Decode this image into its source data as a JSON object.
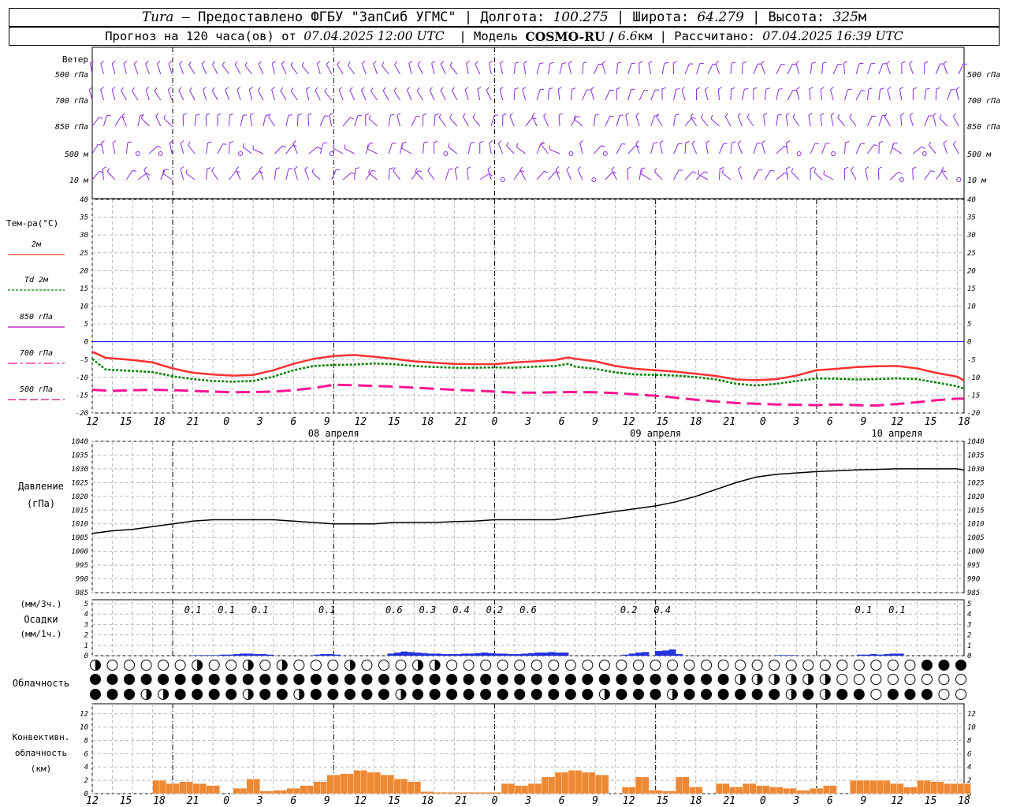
{
  "header": {
    "station": "Tura",
    "provider": " – Предоставлено ФГБУ \"ЗапСиб УГМС\" | Долгота: ",
    "lon": "100.275",
    "lat_label": " | Широта: ",
    "lat": "64.279",
    "alt_label": " | Высота: ",
    "alt": "325",
    "alt_unit": "м",
    "forecast_label": "Прогноз на 120 часа(ов) от ",
    "forecast_date": "07.04.2025 12:00 UTC",
    "model_label": "  | Модель ",
    "model": "COSMO-RU / ",
    "resolution": "6.6",
    "res_unit": "км",
    "calc_label": " | Рассчитано: ",
    "calc_date": "07.04.2025 16:39 UTC"
  },
  "wind": {
    "label": "Ветер",
    "levels": [
      "500 гПа",
      "700 гПа",
      "850 гПа",
      "500 м",
      "10 м"
    ],
    "barb_color": "#8a2be2"
  },
  "time_axis": {
    "hours": [
      "12",
      "15",
      "18",
      "21",
      "0",
      "3",
      "6",
      "9",
      "12",
      "15",
      "18",
      "21",
      "0",
      "3",
      "6",
      "9",
      "12",
      "15",
      "18",
      "21",
      "0",
      "3",
      "6",
      "9",
      "12",
      "15",
      "18"
    ],
    "dates": [
      "08 апреля",
      "09 апреля",
      "10 апреля"
    ]
  },
  "temperature": {
    "title": "Тем-ра(°C)",
    "legend": [
      {
        "label": "2м",
        "color": "#ff3030"
      },
      {
        "label": "Td  2м",
        "color": "#008000"
      },
      {
        "label": "850 гПа",
        "color": "#c000c0"
      },
      {
        "label": "700 гПа",
        "color": "#ff1493"
      },
      {
        "label": "500 гПа",
        "color": "#d01070"
      }
    ],
    "y_ticks": [
      "40",
      "35",
      "30",
      "25",
      "20",
      "15",
      "10",
      "5",
      "0",
      "-5",
      "-10",
      "-15",
      "-20"
    ]
  },
  "pressure": {
    "title": "Давление",
    "unit": "(гПа)",
    "y_ticks": [
      "1040",
      "1035",
      "1030",
      "1025",
      "1020",
      "1015",
      "1010",
      "1005",
      "1000",
      "995",
      "990",
      "985"
    ]
  },
  "precip": {
    "unit_top": "(мм/3ч.)",
    "title": "Осадки",
    "unit_bottom": "(мм/1ч.)",
    "y_ticks": [
      "5",
      "4",
      "3",
      "2",
      "1",
      "0"
    ],
    "labels": [
      {
        "h": 15,
        "v": "0.1"
      },
      {
        "h": 20,
        "v": "0.1"
      },
      {
        "h": 25,
        "v": "0.1"
      },
      {
        "h": 35,
        "v": "0.1"
      },
      {
        "h": 45,
        "v": "0.6"
      },
      {
        "h": 50,
        "v": "0.3"
      },
      {
        "h": 55,
        "v": "0.4"
      },
      {
        "h": 60,
        "v": "0.2"
      },
      {
        "h": 65,
        "v": "0.6"
      },
      {
        "h": 80,
        "v": "0.2"
      },
      {
        "h": 85,
        "v": "0.4"
      },
      {
        "h": 115,
        "v": "0.1"
      },
      {
        "h": 120,
        "v": "0.1"
      }
    ]
  },
  "cloud": {
    "title": "Облачность"
  },
  "convective": {
    "title1": "Конвективн.",
    "title2": "облачность",
    "unit": "(км)",
    "y_ticks": [
      "12",
      "10",
      "8",
      "6",
      "4",
      "2",
      "0"
    ]
  },
  "chart_data": [
    {
      "type": "line",
      "title": "Тем-ра(°C)",
      "x_unit": "hours since 07.04.2025 12:00 UTC",
      "ylim": [
        -20,
        40
      ],
      "series": [
        {
          "name": "2м",
          "x": [
            0,
            2,
            6,
            9,
            12,
            15,
            18,
            21,
            24,
            27,
            30,
            33,
            36,
            39,
            42,
            45,
            48,
            51,
            54,
            57,
            60,
            63,
            66,
            69,
            71,
            72,
            75,
            78,
            81,
            84,
            87,
            90,
            93,
            96,
            99,
            102,
            105,
            108,
            111,
            114,
            117,
            120,
            123,
            126,
            129,
            130
          ],
          "values": [
            -2.8,
            -4.5,
            -5.1,
            -5.8,
            -7.5,
            -8.7,
            -9.2,
            -9.5,
            -9.3,
            -8.0,
            -6.2,
            -4.8,
            -4.0,
            -3.7,
            -4.2,
            -4.8,
            -5.5,
            -5.9,
            -6.2,
            -6.3,
            -6.3,
            -5.8,
            -5.5,
            -5.1,
            -4.4,
            -4.8,
            -5.5,
            -6.8,
            -7.6,
            -8.0,
            -8.4,
            -9.0,
            -9.6,
            -10.6,
            -10.8,
            -10.5,
            -9.5,
            -8.0,
            -7.6,
            -7.1,
            -6.9,
            -6.8,
            -7.5,
            -8.8,
            -9.8,
            -10.9
          ]
        },
        {
          "name": "Td  2м",
          "x": [
            0,
            2,
            6,
            9,
            12,
            15,
            18,
            21,
            24,
            27,
            30,
            33,
            36,
            39,
            42,
            45,
            48,
            51,
            54,
            57,
            60,
            63,
            66,
            69,
            71,
            72,
            75,
            78,
            81,
            84,
            87,
            90,
            93,
            96,
            99,
            102,
            105,
            108,
            111,
            114,
            117,
            120,
            123,
            126,
            129,
            130
          ],
          "values": [
            -4.8,
            -7.8,
            -8.2,
            -8.5,
            -9.7,
            -10.5,
            -11.0,
            -11.2,
            -11.0,
            -9.8,
            -8.0,
            -6.8,
            -6.5,
            -6.4,
            -6.1,
            -6.3,
            -6.8,
            -7.1,
            -7.3,
            -7.3,
            -7.2,
            -7.3,
            -7.0,
            -6.8,
            -6.2,
            -7.0,
            -7.6,
            -8.6,
            -9.2,
            -9.3,
            -9.5,
            -9.9,
            -10.6,
            -11.8,
            -12.3,
            -11.8,
            -11.0,
            -10.3,
            -10.4,
            -10.6,
            -10.5,
            -10.3,
            -10.5,
            -11.5,
            -12.5,
            -13.2
          ]
        },
        {
          "name": "500 гПа",
          "x": [
            0,
            3,
            6,
            9,
            12,
            15,
            18,
            21,
            24,
            27,
            30,
            33,
            36,
            39,
            42,
            45,
            48,
            51,
            54,
            57,
            60,
            63,
            66,
            69,
            72,
            75,
            78,
            81,
            84,
            87,
            90,
            93,
            96,
            99,
            102,
            105,
            108,
            111,
            114,
            117,
            120,
            123,
            126,
            129,
            130
          ],
          "values": [
            -13.5,
            -13.8,
            -13.6,
            -13.5,
            -13.6,
            -13.8,
            -14.0,
            -14.2,
            -14.1,
            -14.0,
            -13.6,
            -13.0,
            -12.1,
            -12.2,
            -12.4,
            -12.6,
            -12.9,
            -13.2,
            -13.5,
            -13.7,
            -14.0,
            -14.3,
            -14.3,
            -14.2,
            -14.1,
            -14.2,
            -14.4,
            -14.8,
            -15.2,
            -15.7,
            -16.3,
            -16.8,
            -17.2,
            -17.4,
            -17.6,
            -17.7,
            -17.8,
            -17.6,
            -17.8,
            -17.9,
            -17.5,
            -17.0,
            -16.4,
            -16.0,
            -16.0
          ]
        }
      ]
    },
    {
      "type": "line",
      "title": "Давление",
      "ylabel": "(гПа)",
      "ylim": [
        985,
        1040
      ],
      "series": [
        {
          "x": [
            0,
            3,
            6,
            9,
            12,
            15,
            18,
            21,
            24,
            27,
            30,
            33,
            36,
            39,
            42,
            45,
            48,
            51,
            54,
            57,
            60,
            63,
            66,
            69,
            72,
            75,
            78,
            81,
            84,
            87,
            90,
            93,
            96,
            99,
            102,
            105,
            108,
            111,
            114,
            117,
            120,
            123,
            126,
            129,
            130
          ],
          "values": [
            1006.5,
            1007.5,
            1008.0,
            1009.0,
            1010.0,
            1011.0,
            1011.5,
            1011.5,
            1011.5,
            1011.5,
            1011.0,
            1010.5,
            1010.0,
            1010.0,
            1010.0,
            1010.5,
            1010.5,
            1010.5,
            1010.8,
            1011.0,
            1011.5,
            1011.5,
            1011.5,
            1011.5,
            1012.5,
            1013.5,
            1014.5,
            1015.5,
            1016.5,
            1018.0,
            1020.0,
            1022.5,
            1025.0,
            1027.0,
            1028.0,
            1028.5,
            1029.0,
            1029.3,
            1029.6,
            1029.8,
            1030.0,
            1030.0,
            1030.0,
            1030.0,
            1029.5
          ]
        }
      ]
    },
    {
      "type": "bar",
      "title": "Осадки",
      "ylabel": "(мм/1ч.)",
      "ylim": [
        0,
        5
      ],
      "x": [
        15,
        16,
        17,
        18,
        19,
        20,
        21,
        22,
        23,
        24,
        25,
        26,
        33,
        34,
        35,
        36,
        44,
        45,
        46,
        47,
        48,
        49,
        50,
        51,
        52,
        53,
        54,
        55,
        56,
        57,
        58,
        59,
        60,
        61,
        62,
        63,
        64,
        65,
        66,
        67,
        68,
        69,
        70,
        79,
        80,
        81,
        82,
        84,
        85,
        86,
        87,
        102,
        103,
        104,
        114,
        115,
        116,
        117,
        118,
        119,
        120
      ],
      "values": [
        0.05,
        0.05,
        0.05,
        0.05,
        0.1,
        0.1,
        0.15,
        0.2,
        0.2,
        0.15,
        0.15,
        0.1,
        0.1,
        0.15,
        0.15,
        0.1,
        0.2,
        0.3,
        0.4,
        0.35,
        0.3,
        0.25,
        0.2,
        0.2,
        0.15,
        0.15,
        0.15,
        0.2,
        0.2,
        0.25,
        0.3,
        0.25,
        0.2,
        0.2,
        0.15,
        0.15,
        0.2,
        0.25,
        0.3,
        0.3,
        0.35,
        0.3,
        0.3,
        0.1,
        0.2,
        0.3,
        0.35,
        0.45,
        0.5,
        0.6,
        0.15,
        0.05,
        0.05,
        0.05,
        0.1,
        0.1,
        0.15,
        0.1,
        0.15,
        0.2,
        0.2
      ]
    },
    {
      "type": "bar",
      "title": "Конвективн. облачность",
      "ylabel": "(км)",
      "ylim": [
        0,
        13
      ],
      "x": [
        6,
        7,
        8,
        9,
        10,
        11,
        12,
        13,
        14,
        15,
        16,
        17,
        18,
        19,
        20,
        21,
        22,
        23,
        24,
        25,
        26,
        27,
        28,
        29,
        30,
        31,
        32,
        33,
        34,
        35,
        36,
        37,
        38,
        39,
        40,
        41,
        42,
        43,
        44,
        45,
        46,
        47,
        48,
        49,
        50,
        51,
        52,
        53,
        54,
        55,
        56,
        57,
        58,
        59,
        60,
        61,
        62,
        63,
        64,
        65,
        66,
        67,
        68,
        69,
        70,
        71,
        72,
        73,
        74,
        75,
        76,
        77,
        78,
        79,
        80,
        81,
        82,
        83,
        84,
        85,
        86,
        87,
        88,
        89,
        90,
        91,
        92,
        93,
        94,
        95,
        96,
        97,
        98,
        99,
        100,
        101,
        102,
        103,
        104,
        105,
        106,
        107,
        108,
        109,
        110,
        111,
        112,
        113,
        114,
        115,
        116,
        117,
        118,
        119,
        120,
        121,
        122,
        123,
        124,
        125,
        126,
        127,
        128,
        129,
        130
      ],
      "values": [
        0,
        0,
        0,
        2.0,
        2.0,
        1.5,
        1.5,
        1.8,
        1.8,
        1.5,
        1.5,
        1.2,
        1.2,
        0,
        0,
        0.8,
        0.8,
        2.2,
        2.2,
        0.4,
        0.4,
        0.5,
        0.5,
        0.8,
        0.8,
        1.2,
        1.2,
        1.8,
        1.8,
        2.8,
        2.8,
        3.0,
        3.0,
        3.5,
        3.5,
        3.2,
        3.2,
        2.8,
        2.8,
        2.2,
        2.2,
        1.8,
        1.8,
        0.3,
        0.3,
        0.2,
        0.2,
        0.2,
        0.2,
        0.2,
        0.2,
        0.2,
        0.2,
        0.2,
        0.2,
        1.5,
        1.5,
        1.2,
        1.2,
        1.5,
        1.5,
        2.5,
        2.5,
        3.2,
        3.2,
        3.5,
        3.5,
        3.2,
        3.2,
        2.8,
        2.8,
        0,
        0,
        1.0,
        1.0,
        2.5,
        2.5,
        0.5,
        0.5,
        0.4,
        0.4,
        2.5,
        2.5,
        1.0,
        1.0,
        0,
        0,
        1.5,
        1.5,
        1.0,
        1.0,
        1.5,
        1.5,
        1.2,
        1.2,
        1.0,
        1.0,
        0.8,
        0.8,
        0.5,
        0.5,
        0.8,
        0.8,
        1.2,
        1.2,
        0,
        0,
        2.0,
        2.0,
        2.0,
        2.0,
        2.0,
        2.0,
        1.5,
        1.5,
        1.0,
        1.0,
        2.0,
        2.0,
        1.8,
        1.8,
        1.5,
        1.5,
        1.5,
        1.5
      ]
    }
  ]
}
